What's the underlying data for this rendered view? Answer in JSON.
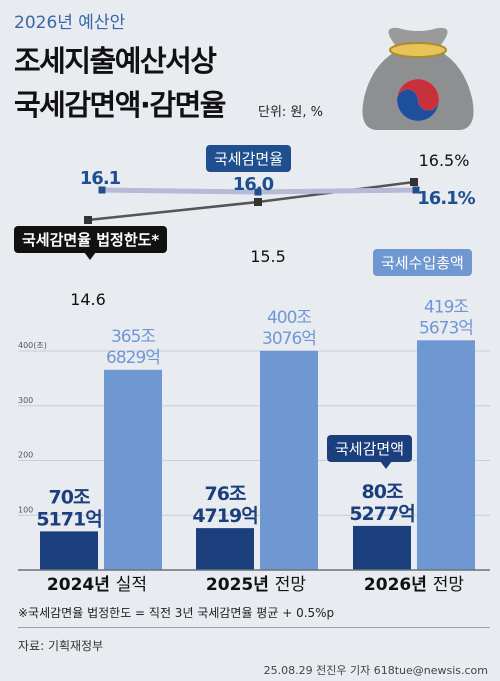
{
  "header": {
    "subtitle": "2026년 예산안",
    "title_line1": "조세지출예산서상",
    "title_line2": "국세감면액·감면율",
    "unit": "단위: 원, %"
  },
  "labels": {
    "rate_label": "국세감면율",
    "limit_label": "국세감면율 법정한도*",
    "revenue_label": "국세수입총액",
    "reduction_label": "국세감면액"
  },
  "footer": {
    "footnote": "※국세감면율 법정한도 = 직전 3년 국세감면율 평균 + 0.5%p",
    "source": "자료: 기획재정부",
    "credit": "25.08.29 전진우 기자 618tue@newsis.com"
  },
  "colors": {
    "reduction_bar": "#1b3f7d",
    "revenue_bar": "#6f98d3",
    "rate_line": "#b7b9d6",
    "limit_line": "#555555",
    "accent_blue": "#1f4f8f"
  },
  "chart_data": {
    "type": "bar",
    "categories": [
      "2024년 실적",
      "2025년 전망",
      "2026년 전망"
    ],
    "category_labels": [
      {
        "year": "2024년",
        "status": "실적"
      },
      {
        "year": "2025년",
        "status": "전망"
      },
      {
        "year": "2026년",
        "status": "전망"
      }
    ],
    "ylim": [
      0,
      440
    ],
    "y_axis_unit": "(조)",
    "y_ticks": [
      {
        "value": 100,
        "label": "100"
      },
      {
        "value": 200,
        "label": "200"
      },
      {
        "value": 300,
        "label": "300"
      },
      {
        "value": 400,
        "label": "400"
      }
    ],
    "series": [
      {
        "values": [
          70.5171,
          76.4719,
          80.5277
        ],
        "labels": [
          [
            "70조",
            "5171억"
          ],
          [
            "76조",
            "4719억"
          ],
          [
            "80조",
            "5277억"
          ]
        ]
      },
      {
        "values": [
          365.6829,
          400.3076,
          419.5673
        ],
        "labels": [
          [
            "365조",
            "6829억"
          ],
          [
            "400조",
            "3076억"
          ],
          [
            "419조",
            "5673억"
          ]
        ]
      }
    ],
    "lines": [
      {
        "name": "국세감면율",
        "values": [
          16.1,
          16.0,
          16.1
        ],
        "labels": [
          "16.1",
          "16.0",
          "16.1%"
        ]
      },
      {
        "name": "국세감면율 법정한도*",
        "values": [
          14.6,
          15.5,
          16.5
        ],
        "labels": [
          "14.6",
          "15.5",
          "16.5%"
        ]
      }
    ]
  }
}
